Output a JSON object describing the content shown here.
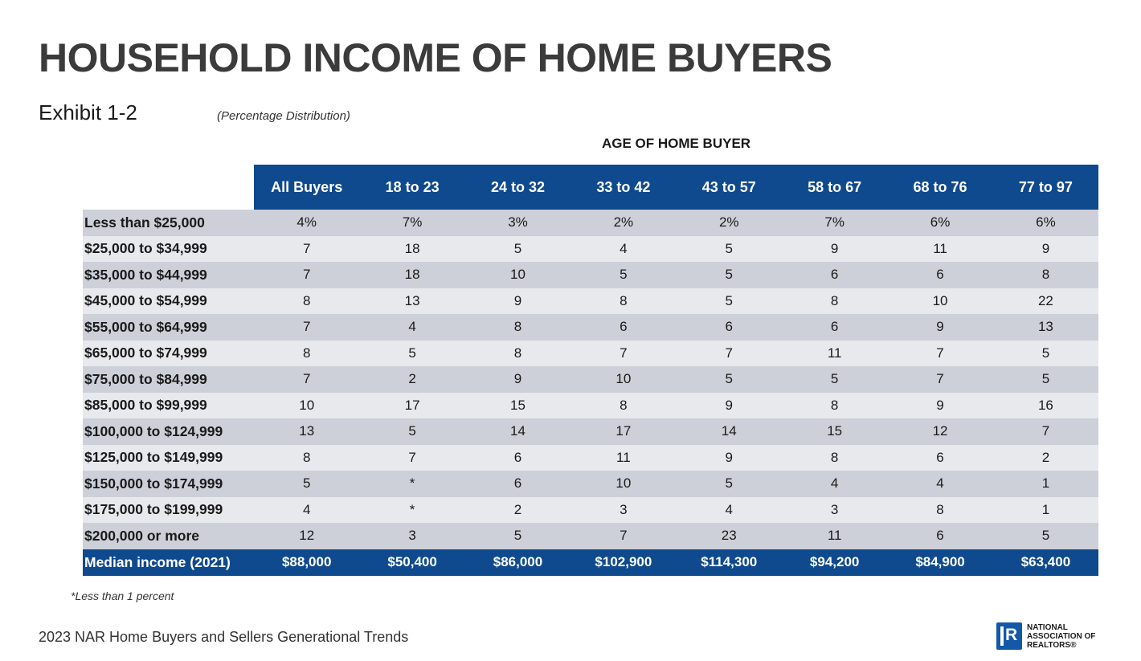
{
  "title": "HOUSEHOLD INCOME OF HOME BUYERS",
  "exhibit": "Exhibit 1-2",
  "subtitle": "(Percentage Distribution)",
  "age_header": "AGE OF HOME BUYER",
  "columns": [
    "All Buyers",
    "18 to 23",
    "24 to 32",
    "33 to 42",
    "43 to 57",
    "58 to 67",
    "68 to 76",
    "77 to 97"
  ],
  "rows": [
    {
      "label": "Less than $25,000",
      "values": [
        "4%",
        "7%",
        "3%",
        "2%",
        "2%",
        "7%",
        "6%",
        "6%"
      ]
    },
    {
      "label": "$25,000 to $34,999",
      "values": [
        "7",
        "18",
        "5",
        "4",
        "5",
        "9",
        "11",
        "9"
      ]
    },
    {
      "label": "$35,000 to $44,999",
      "values": [
        "7",
        "18",
        "10",
        "5",
        "5",
        "6",
        "6",
        "8"
      ]
    },
    {
      "label": "$45,000 to $54,999",
      "values": [
        "8",
        "13",
        "9",
        "8",
        "5",
        "8",
        "10",
        "22"
      ]
    },
    {
      "label": "$55,000 to $64,999",
      "values": [
        "7",
        "4",
        "8",
        "6",
        "6",
        "6",
        "9",
        "13"
      ]
    },
    {
      "label": "$65,000 to $74,999",
      "values": [
        "8",
        "5",
        "8",
        "7",
        "7",
        "11",
        "7",
        "5"
      ]
    },
    {
      "label": "$75,000 to $84,999",
      "values": [
        "7",
        "2",
        "9",
        "10",
        "5",
        "5",
        "7",
        "5"
      ]
    },
    {
      "label": "$85,000 to $99,999",
      "values": [
        "10",
        "17",
        "15",
        "8",
        "9",
        "8",
        "9",
        "16"
      ]
    },
    {
      "label": "$100,000 to $124,999",
      "values": [
        "13",
        "5",
        "14",
        "17",
        "14",
        "15",
        "12",
        "7"
      ]
    },
    {
      "label": "$125,000 to $149,999",
      "values": [
        "8",
        "7",
        "6",
        "11",
        "9",
        "8",
        "6",
        "2"
      ]
    },
    {
      "label": "$150,000 to $174,999",
      "values": [
        "5",
        "*",
        "6",
        "10",
        "5",
        "4",
        "4",
        "1"
      ]
    },
    {
      "label": "$175,000 to $199,999",
      "values": [
        "4",
        "*",
        "2",
        "3",
        "4",
        "3",
        "8",
        "1"
      ]
    },
    {
      "label": "$200,000 or more",
      "values": [
        "12",
        "3",
        "5",
        "7",
        "23",
        "11",
        "6",
        "5"
      ]
    }
  ],
  "median": {
    "label": "Median income (2021)",
    "values": [
      "$88,000",
      "$50,400",
      "$86,000",
      "$102,900",
      "$114,300",
      "$94,200",
      "$84,900",
      "$63,400"
    ]
  },
  "footnote": "*Less than 1 percent",
  "source": "2023 NAR Home Buyers and Sellers Generational Trends",
  "logo": {
    "line1": "NATIONAL",
    "line2": "ASSOCIATION OF",
    "line3": "REALTORS®",
    "icon": "realtor-r-icon"
  },
  "colors": {
    "header_blue": "#104a8e",
    "row_dark": "#cdd0d8",
    "row_light": "#e8e9ed"
  }
}
